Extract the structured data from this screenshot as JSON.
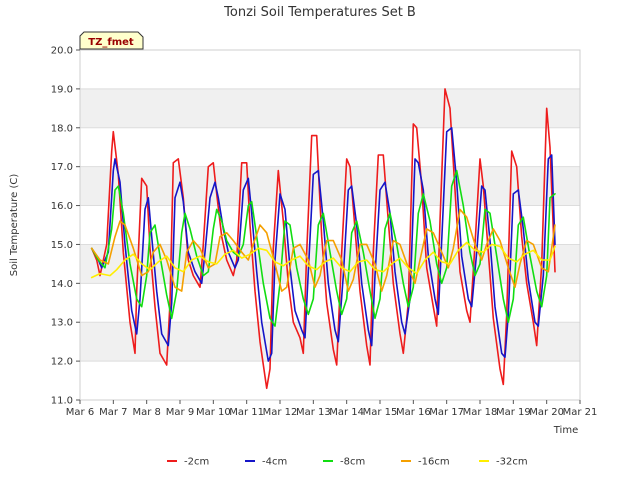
{
  "chart_data": {
    "type": "line",
    "title": "Tonzi Soil Temperatures Set B",
    "xlabel": "Time",
    "ylabel": "Soil Temperature (C)",
    "badge": "TZ_fmet",
    "xlim": [
      6,
      21
    ],
    "ylim": [
      11.0,
      20.0
    ],
    "x_ticks": [
      {
        "v": 6,
        "label": "Mar 6"
      },
      {
        "v": 7,
        "label": "Mar 7"
      },
      {
        "v": 8,
        "label": "Mar 8"
      },
      {
        "v": 9,
        "label": "Mar 9"
      },
      {
        "v": 10,
        "label": "Mar 10"
      },
      {
        "v": 11,
        "label": "Mar 11"
      },
      {
        "v": 12,
        "label": "Mar 12"
      },
      {
        "v": 13,
        "label": "Mar 13"
      },
      {
        "v": 14,
        "label": "Mar 14"
      },
      {
        "v": 15,
        "label": "Mar 15"
      },
      {
        "v": 16,
        "label": "Mar 16"
      },
      {
        "v": 17,
        "label": "Mar 17"
      },
      {
        "v": 18,
        "label": "Mar 18"
      },
      {
        "v": 19,
        "label": "Mar 19"
      },
      {
        "v": 20,
        "label": "Mar 20"
      },
      {
        "v": 21,
        "label": "Mar 21"
      }
    ],
    "y_ticks": [
      {
        "v": 11,
        "label": "11.0"
      },
      {
        "v": 12,
        "label": "12.0"
      },
      {
        "v": 13,
        "label": "13.0"
      },
      {
        "v": 14,
        "label": "14.0"
      },
      {
        "v": 15,
        "label": "15.0"
      },
      {
        "v": 16,
        "label": "16.0"
      },
      {
        "v": 17,
        "label": "17.0"
      },
      {
        "v": 18,
        "label": "18.0"
      },
      {
        "v": 19,
        "label": "19.0"
      },
      {
        "v": 20,
        "label": "20.0"
      }
    ],
    "grid": "horizontal bands",
    "legend_position": "bottom",
    "series": [
      {
        "name": "-2cm",
        "color": "#ee1c1c",
        "x": [
          6.35,
          6.5,
          6.6,
          6.8,
          6.95,
          7.0,
          7.15,
          7.3,
          7.5,
          7.65,
          7.7,
          7.85,
          8.0,
          8.1,
          8.25,
          8.4,
          8.6,
          8.7,
          8.8,
          8.95,
          9.1,
          9.25,
          9.4,
          9.6,
          9.7,
          9.85,
          10.0,
          10.1,
          10.25,
          10.4,
          10.6,
          10.7,
          10.85,
          11.0,
          11.1,
          11.25,
          11.4,
          11.6,
          11.7,
          11.8,
          11.95,
          12.1,
          12.25,
          12.4,
          12.6,
          12.7,
          12.8,
          12.95,
          13.1,
          13.25,
          13.4,
          13.6,
          13.7,
          13.85,
          14.0,
          14.1,
          14.25,
          14.4,
          14.6,
          14.7,
          14.8,
          14.95,
          15.1,
          15.25,
          15.4,
          15.6,
          15.7,
          15.85,
          16.0,
          16.1,
          16.25,
          16.4,
          16.6,
          16.7,
          16.8,
          16.95,
          17.1,
          17.25,
          17.4,
          17.6,
          17.7,
          17.85,
          18.0,
          18.1,
          18.25,
          18.4,
          18.6,
          18.7,
          18.8,
          18.95,
          19.1,
          19.25,
          19.4,
          19.6,
          19.7,
          19.85,
          20.0,
          20.1,
          20.25
        ],
        "y": [
          14.9,
          14.6,
          14.2,
          15.0,
          17.4,
          17.9,
          16.8,
          14.8,
          13.0,
          12.2,
          13.8,
          16.7,
          16.5,
          14.9,
          13.4,
          12.2,
          11.9,
          13.5,
          17.1,
          17.2,
          16.2,
          14.6,
          14.2,
          13.9,
          15.0,
          17.0,
          17.1,
          16.3,
          15.2,
          14.6,
          14.2,
          14.6,
          17.1,
          17.1,
          15.5,
          13.8,
          12.5,
          11.3,
          11.8,
          14.9,
          16.9,
          15.6,
          14.0,
          13.0,
          12.6,
          12.2,
          14.8,
          17.8,
          17.8,
          15.2,
          13.5,
          12.3,
          11.9,
          14.8,
          17.2,
          17.0,
          15.4,
          13.8,
          12.4,
          11.9,
          14.8,
          17.3,
          17.3,
          15.6,
          14.0,
          12.7,
          12.2,
          13.5,
          18.1,
          18.0,
          16.5,
          14.4,
          13.4,
          12.9,
          15.6,
          19.0,
          18.5,
          16.4,
          14.3,
          13.3,
          13.0,
          15.0,
          17.2,
          16.5,
          14.8,
          13.1,
          11.8,
          11.4,
          13.2,
          17.4,
          17.0,
          15.2,
          14.0,
          13.0,
          12.4,
          14.5,
          18.5,
          17.5,
          14.3
        ]
      },
      {
        "name": "-4cm",
        "color": "#1515c8",
        "x": [
          6.35,
          6.5,
          6.65,
          6.85,
          7.0,
          7.05,
          7.2,
          7.35,
          7.55,
          7.7,
          7.8,
          7.95,
          8.05,
          8.15,
          8.3,
          8.45,
          8.65,
          8.75,
          8.85,
          9.0,
          9.1,
          9.25,
          9.45,
          9.65,
          9.75,
          9.9,
          10.05,
          10.15,
          10.3,
          10.45,
          10.65,
          10.75,
          10.9,
          11.05,
          11.15,
          11.3,
          11.45,
          11.65,
          11.75,
          11.85,
          12.0,
          12.15,
          12.3,
          12.45,
          12.65,
          12.75,
          12.85,
          13.0,
          13.15,
          13.3,
          13.45,
          13.65,
          13.75,
          13.9,
          14.05,
          14.15,
          14.3,
          14.45,
          14.65,
          14.75,
          14.85,
          15.0,
          15.15,
          15.3,
          15.45,
          15.65,
          15.75,
          15.9,
          16.05,
          16.15,
          16.3,
          16.45,
          16.65,
          16.75,
          16.85,
          17.0,
          17.15,
          17.3,
          17.45,
          17.65,
          17.75,
          17.9,
          18.05,
          18.15,
          18.3,
          18.45,
          18.65,
          18.75,
          18.85,
          19.0,
          19.15,
          19.3,
          19.45,
          19.65,
          19.75,
          19.9,
          20.05,
          20.15,
          20.25
        ],
        "y": [
          14.9,
          14.7,
          14.4,
          14.8,
          16.9,
          17.2,
          16.6,
          15.0,
          13.3,
          12.7,
          13.6,
          15.9,
          16.2,
          15.2,
          13.8,
          12.7,
          12.4,
          13.5,
          16.2,
          16.6,
          16.1,
          14.8,
          14.3,
          14.0,
          14.8,
          16.2,
          16.6,
          16.2,
          15.4,
          14.8,
          14.4,
          14.6,
          16.4,
          16.7,
          15.8,
          14.3,
          13.0,
          12.0,
          12.2,
          14.6,
          16.3,
          15.9,
          14.4,
          13.3,
          12.8,
          12.6,
          14.3,
          16.8,
          16.9,
          15.6,
          14.0,
          12.8,
          12.5,
          14.2,
          16.4,
          16.5,
          15.5,
          14.0,
          12.8,
          12.4,
          14.2,
          16.4,
          16.6,
          15.8,
          14.3,
          13.0,
          12.7,
          13.6,
          17.2,
          17.1,
          16.4,
          14.7,
          13.6,
          13.2,
          15.1,
          17.9,
          18.0,
          16.6,
          14.7,
          13.6,
          13.4,
          14.8,
          16.5,
          16.4,
          15.1,
          13.4,
          12.2,
          12.1,
          13.2,
          16.3,
          16.4,
          15.4,
          14.1,
          13.0,
          12.9,
          14.2,
          17.2,
          17.3,
          15.0
        ]
      },
      {
        "name": "-8cm",
        "color": "#11dd11",
        "x": [
          6.35,
          6.55,
          6.75,
          6.95,
          7.05,
          7.15,
          7.3,
          7.5,
          7.7,
          7.85,
          8.0,
          8.1,
          8.25,
          8.4,
          8.6,
          8.75,
          8.9,
          9.05,
          9.15,
          9.3,
          9.5,
          9.7,
          9.85,
          10.0,
          10.1,
          10.25,
          10.4,
          10.6,
          10.75,
          10.9,
          11.05,
          11.15,
          11.3,
          11.5,
          11.7,
          11.85,
          12.0,
          12.15,
          12.3,
          12.5,
          12.7,
          12.85,
          13.0,
          13.15,
          13.3,
          13.5,
          13.7,
          13.85,
          14.0,
          14.15,
          14.3,
          14.5,
          14.7,
          14.85,
          15.0,
          15.15,
          15.3,
          15.5,
          15.7,
          15.85,
          16.0,
          16.15,
          16.3,
          16.5,
          16.7,
          16.85,
          17.0,
          17.15,
          17.3,
          17.5,
          17.7,
          17.85,
          18.0,
          18.15,
          18.3,
          18.5,
          18.7,
          18.85,
          19.0,
          19.15,
          19.3,
          19.5,
          19.7,
          19.85,
          20.0,
          20.1,
          20.25
        ],
        "y": [
          14.9,
          14.6,
          14.4,
          15.4,
          16.4,
          16.5,
          15.8,
          14.5,
          13.6,
          13.4,
          14.2,
          15.3,
          15.5,
          14.7,
          13.7,
          13.1,
          13.8,
          15.3,
          15.8,
          15.4,
          14.7,
          14.2,
          14.3,
          15.4,
          15.9,
          15.6,
          15.1,
          14.8,
          14.7,
          15.0,
          16.0,
          16.1,
          15.2,
          14.0,
          13.1,
          12.9,
          14.0,
          15.6,
          15.5,
          14.4,
          13.6,
          13.2,
          13.6,
          15.5,
          15.8,
          14.8,
          13.8,
          13.2,
          13.6,
          15.3,
          15.6,
          14.8,
          13.8,
          13.1,
          13.6,
          15.4,
          15.8,
          15.0,
          14.0,
          13.4,
          13.9,
          15.8,
          16.3,
          15.6,
          14.5,
          14.0,
          14.4,
          16.5,
          16.9,
          16.0,
          14.8,
          14.2,
          14.5,
          15.9,
          15.8,
          14.7,
          13.6,
          13.0,
          13.6,
          15.5,
          15.7,
          14.7,
          13.8,
          13.4,
          14.2,
          16.2,
          16.3
        ]
      },
      {
        "name": "-16cm",
        "color": "#f5a000",
        "x": [
          6.35,
          6.6,
          6.85,
          7.05,
          7.2,
          7.35,
          7.6,
          7.85,
          8.05,
          8.2,
          8.4,
          8.6,
          8.85,
          9.05,
          9.2,
          9.4,
          9.6,
          9.85,
          10.05,
          10.2,
          10.4,
          10.6,
          10.85,
          11.05,
          11.2,
          11.4,
          11.6,
          11.85,
          12.05,
          12.2,
          12.4,
          12.6,
          12.85,
          13.05,
          13.2,
          13.4,
          13.6,
          13.85,
          14.05,
          14.2,
          14.4,
          14.6,
          14.85,
          15.05,
          15.2,
          15.4,
          15.6,
          15.85,
          16.05,
          16.2,
          16.4,
          16.6,
          16.85,
          17.05,
          17.2,
          17.4,
          17.6,
          17.85,
          18.05,
          18.2,
          18.4,
          18.6,
          18.85,
          19.05,
          19.2,
          19.4,
          19.6,
          19.85,
          20.05,
          20.25
        ],
        "y": [
          14.9,
          14.6,
          14.5,
          15.2,
          15.6,
          15.5,
          14.9,
          14.2,
          14.3,
          14.8,
          15.0,
          14.6,
          13.9,
          13.8,
          14.8,
          15.1,
          14.9,
          14.4,
          14.5,
          15.2,
          15.3,
          15.1,
          14.8,
          14.6,
          15.0,
          15.5,
          15.3,
          14.5,
          13.8,
          13.9,
          14.9,
          15.0,
          14.6,
          13.9,
          14.2,
          15.1,
          15.1,
          14.6,
          13.8,
          14.1,
          15.0,
          15.0,
          14.5,
          13.8,
          14.2,
          15.1,
          15.0,
          14.4,
          14.0,
          14.6,
          15.4,
          15.3,
          14.8,
          14.4,
          14.9,
          15.9,
          15.7,
          15.0,
          14.6,
          15.0,
          15.4,
          15.1,
          14.4,
          13.9,
          14.5,
          15.1,
          15.0,
          14.4,
          14.3,
          15.5
        ]
      },
      {
        "name": "-32cm",
        "color": "#ffee00",
        "x": [
          6.35,
          6.6,
          6.9,
          7.1,
          7.35,
          7.6,
          7.85,
          8.1,
          8.35,
          8.6,
          8.85,
          9.1,
          9.35,
          9.6,
          9.85,
          10.1,
          10.35,
          10.6,
          10.85,
          11.1,
          11.35,
          11.6,
          11.85,
          12.1,
          12.35,
          12.6,
          12.85,
          13.1,
          13.35,
          13.6,
          13.85,
          14.1,
          14.35,
          14.6,
          14.85,
          15.1,
          15.35,
          15.6,
          15.85,
          16.1,
          16.35,
          16.6,
          16.85,
          17.1,
          17.35,
          17.6,
          17.85,
          18.1,
          18.35,
          18.6,
          18.85,
          19.1,
          19.35,
          19.6,
          19.85,
          20.1,
          20.25
        ],
        "y": [
          14.15,
          14.25,
          14.2,
          14.35,
          14.6,
          14.75,
          14.5,
          14.35,
          14.55,
          14.7,
          14.4,
          14.3,
          14.6,
          14.7,
          14.55,
          14.5,
          14.75,
          14.85,
          14.65,
          14.75,
          14.9,
          14.85,
          14.55,
          14.45,
          14.6,
          14.7,
          14.45,
          14.35,
          14.55,
          14.65,
          14.4,
          14.3,
          14.55,
          14.6,
          14.35,
          14.3,
          14.5,
          14.65,
          14.4,
          14.25,
          14.6,
          14.8,
          14.55,
          14.5,
          14.85,
          15.05,
          14.85,
          14.8,
          15.0,
          14.95,
          14.65,
          14.55,
          14.75,
          14.85,
          14.6,
          14.6,
          14.95
        ]
      }
    ]
  }
}
